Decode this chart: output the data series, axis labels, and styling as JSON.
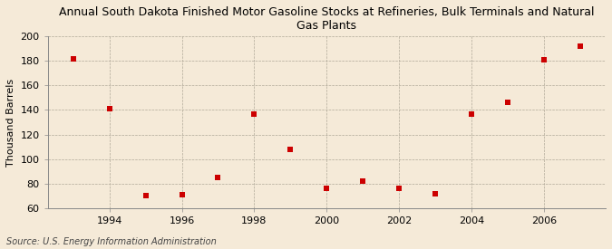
{
  "title": "Annual South Dakota Finished Motor Gasoline Stocks at Refineries, Bulk Terminals and Natural\nGas Plants",
  "ylabel": "Thousand Barrels",
  "source": "Source: U.S. Energy Information Administration",
  "years": [
    1993,
    1994,
    1995,
    1996,
    1997,
    1998,
    1999,
    2000,
    2001,
    2002,
    2003,
    2004,
    2005,
    2006,
    2007
  ],
  "values": [
    182,
    141,
    70,
    71,
    85,
    137,
    108,
    76,
    82,
    76,
    72,
    137,
    146,
    181,
    192
  ],
  "marker_color": "#cc0000",
  "marker": "s",
  "marker_size": 4,
  "ylim": [
    60,
    200
  ],
  "yticks": [
    60,
    80,
    100,
    120,
    140,
    160,
    180,
    200
  ],
  "xlim": [
    1992.3,
    2007.7
  ],
  "xticks": [
    1994,
    1996,
    1998,
    2000,
    2002,
    2004,
    2006
  ],
  "grid_color": "#b0a898",
  "background_color": "#f5ead8",
  "title_fontsize": 9,
  "axis_label_fontsize": 8,
  "tick_fontsize": 8,
  "source_fontsize": 7
}
